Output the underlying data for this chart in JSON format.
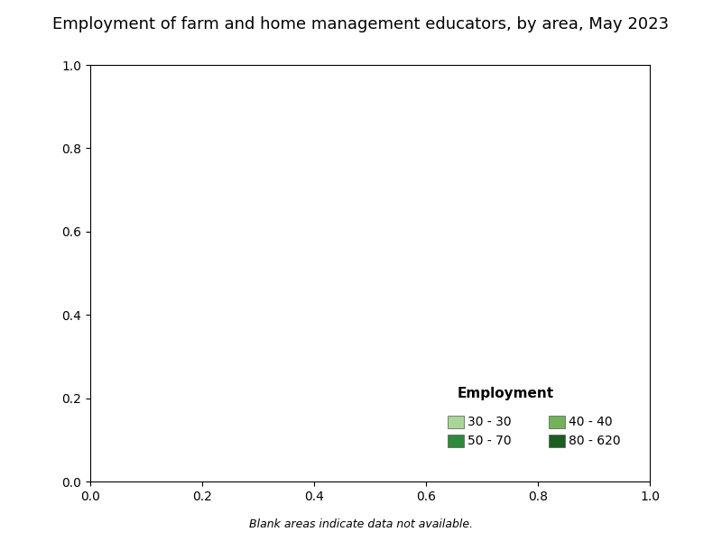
{
  "title": "Employment of farm and home management educators, by area, May 2023",
  "title_fontsize": 13,
  "background_color": "#ffffff",
  "legend_title": "Employment",
  "legend_title_fontsize": 11,
  "legend_fontsize": 10,
  "note_text": "Blank areas indicate data not available.",
  "note_fontsize": 9,
  "categories": [
    {
      "label": "30 - 30",
      "color": "#aad598",
      "min": 30,
      "max": 30
    },
    {
      "label": "40 - 40",
      "color": "#72b35a",
      "min": 40,
      "max": 40
    },
    {
      "label": "50 - 70",
      "color": "#2e8b3a",
      "min": 50,
      "max": 70
    },
    {
      "label": "80 - 620",
      "color": "#1a5e20",
      "min": 80,
      "max": 620
    }
  ],
  "no_data_color": "#ffffff",
  "border_color": "#333333",
  "border_linewidth": 0.3,
  "state_border_color": "#333333",
  "state_border_linewidth": 0.6,
  "map_xlim": [
    -125,
    -66
  ],
  "map_ylim": [
    24,
    50
  ],
  "figsize": [
    8.0,
    6.0
  ],
  "dpi": 100
}
